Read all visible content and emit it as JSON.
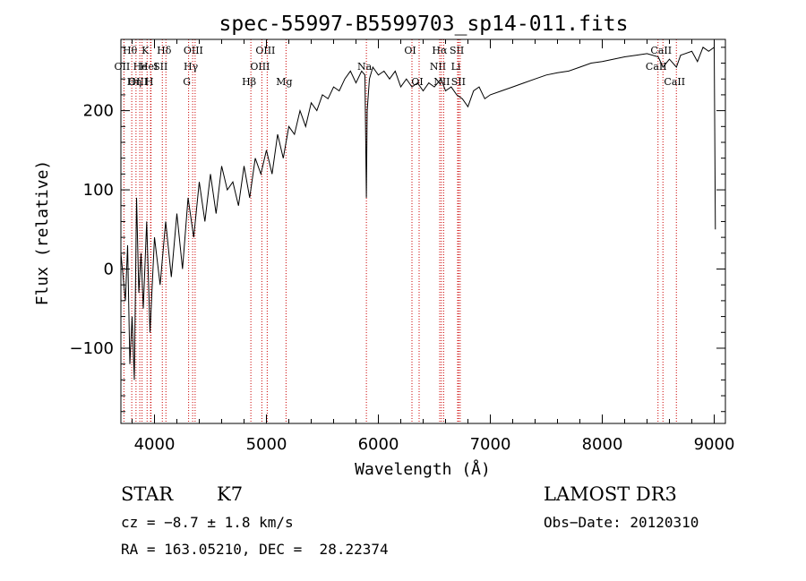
{
  "chart_data": {
    "type": "line",
    "title": "spec-55997-B5599703_sp14-011.fits",
    "xlabel": "Wavelength (Å)",
    "ylabel": "Flux (relative)",
    "xlim": [
      3700,
      9100
    ],
    "ylim": [
      -195,
      290
    ],
    "xticks": [
      4000,
      5000,
      6000,
      7000,
      8000,
      9000
    ],
    "yticks": [
      -100,
      0,
      100,
      200
    ],
    "grid": false,
    "colors": {
      "spectrum": "#000000",
      "lines": "#cc0000"
    },
    "series": [
      {
        "x": [
          3700,
          3740,
          3760,
          3780,
          3800,
          3820,
          3840,
          3860,
          3880,
          3900,
          3930,
          3960,
          4000,
          4050,
          4100,
          4150,
          4200,
          4250,
          4300,
          4350,
          4400,
          4450,
          4500,
          4550,
          4600,
          4650,
          4700,
          4750,
          4800,
          4850,
          4900,
          4950,
          5000,
          5050,
          5100,
          5150,
          5200,
          5250,
          5300,
          5350,
          5400,
          5450,
          5500,
          5550,
          5600,
          5650,
          5700,
          5750,
          5800,
          5850,
          5880,
          5893,
          5900,
          5920,
          5950,
          6000,
          6050,
          6100,
          6150,
          6200,
          6250,
          6300,
          6350,
          6400,
          6450,
          6500,
          6560,
          6600,
          6650,
          6700,
          6750,
          6800,
          6850,
          6900,
          6950,
          7000,
          7100,
          7200,
          7300,
          7400,
          7500,
          7600,
          7700,
          7800,
          7900,
          8000,
          8100,
          8200,
          8300,
          8400,
          8500,
          8542,
          8600,
          8662,
          8700,
          8800,
          8850,
          8900,
          8950,
          9000,
          9010
        ],
        "y": [
          20,
          -40,
          30,
          -120,
          -60,
          -140,
          90,
          -30,
          20,
          -50,
          60,
          -80,
          40,
          -20,
          60,
          -10,
          70,
          0,
          90,
          40,
          110,
          60,
          120,
          70,
          130,
          100,
          110,
          80,
          130,
          90,
          140,
          120,
          150,
          120,
          170,
          140,
          180,
          170,
          200,
          180,
          210,
          200,
          220,
          215,
          230,
          225,
          240,
          250,
          235,
          250,
          245,
          90,
          200,
          240,
          255,
          245,
          250,
          240,
          250,
          230,
          240,
          230,
          235,
          225,
          235,
          230,
          240,
          225,
          230,
          220,
          215,
          205,
          225,
          230,
          215,
          220,
          225,
          230,
          235,
          240,
          245,
          248,
          250,
          255,
          260,
          262,
          265,
          268,
          270,
          272,
          268,
          255,
          265,
          255,
          270,
          275,
          262,
          280,
          275,
          280,
          50
        ]
      }
    ],
    "spectral_lines": [
      {
        "label": "Hθ",
        "wavelength": 3797,
        "row": 0
      },
      {
        "label": "OII",
        "wavelength": 3727,
        "row": 1
      },
      {
        "label": "OIII",
        "wavelength": 3869,
        "row": 2
      },
      {
        "label": "He",
        "wavelength": 3889,
        "row": 1
      },
      {
        "label": "Hη",
        "wavelength": 3835,
        "row": 2
      },
      {
        "label": "K",
        "wavelength": 3934,
        "row": 0
      },
      {
        "label": "HeI",
        "wavelength": 3965,
        "row": 1
      },
      {
        "label": "H",
        "wavelength": 3969,
        "row": 2
      },
      {
        "label": "Hδ",
        "wavelength": 4102,
        "row": 0
      },
      {
        "label": "SII",
        "wavelength": 4070,
        "row": 1
      },
      {
        "label": "OIII",
        "wavelength": 4363,
        "row": 0
      },
      {
        "label": "Hγ",
        "wavelength": 4341,
        "row": 1
      },
      {
        "label": "G",
        "wavelength": 4305,
        "row": 2
      },
      {
        "label": "Hβ",
        "wavelength": 4861,
        "row": 2
      },
      {
        "label": "OIII",
        "wavelength": 5007,
        "row": 0
      },
      {
        "label": "OIII",
        "wavelength": 4959,
        "row": 1
      },
      {
        "label": "Mg",
        "wavelength": 5175,
        "row": 2
      },
      {
        "label": "Na",
        "wavelength": 5893,
        "row": 1
      },
      {
        "label": "OI",
        "wavelength": 6300,
        "row": 0
      },
      {
        "label": "OI",
        "wavelength": 6364,
        "row": 2
      },
      {
        "label": "Hα",
        "wavelength": 6563,
        "row": 0
      },
      {
        "label": "SII",
        "wavelength": 6717,
        "row": 0
      },
      {
        "label": "NII",
        "wavelength": 6548,
        "row": 1
      },
      {
        "label": "NII",
        "wavelength": 6583,
        "row": 2
      },
      {
        "label": "Li",
        "wavelength": 6708,
        "row": 1
      },
      {
        "label": "SII",
        "wavelength": 6731,
        "row": 2
      },
      {
        "label": "CaII",
        "wavelength": 8542,
        "row": 0
      },
      {
        "label": "CaII",
        "wavelength": 8498,
        "row": 1
      },
      {
        "label": "CaII",
        "wavelength": 8662,
        "row": 2
      }
    ]
  },
  "footer": {
    "object_class": "STAR",
    "subclass": "K7",
    "survey": "LAMOST DR3",
    "cz": "cz = −8.7 ± 1.8 km/s",
    "obs_date": "Obs−Date: 20120310",
    "coords": "RA = 163.05210, DEC =  28.22374"
  }
}
